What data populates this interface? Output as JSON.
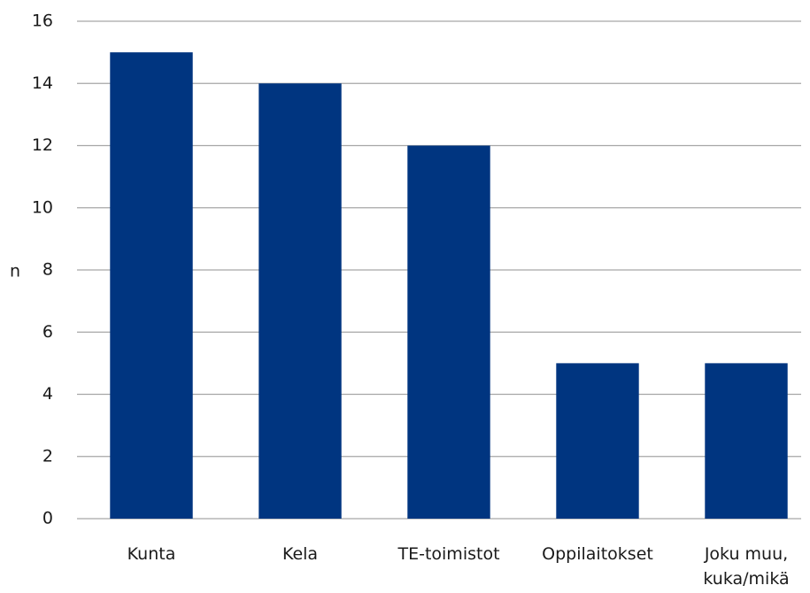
{
  "chart_data": {
    "type": "bar",
    "y_label": "n",
    "categories": [
      "Kunta",
      "Kela",
      "TE-toimistot",
      "Oppilaitokset",
      "Joku muu, kuka/mikä"
    ],
    "values": [
      15,
      14,
      12,
      5,
      5
    ],
    "color": "#003580",
    "ylim": [
      0,
      16
    ],
    "yticks": [
      0,
      2,
      4,
      6,
      8,
      10,
      12,
      14,
      16
    ],
    "grid": true
  }
}
